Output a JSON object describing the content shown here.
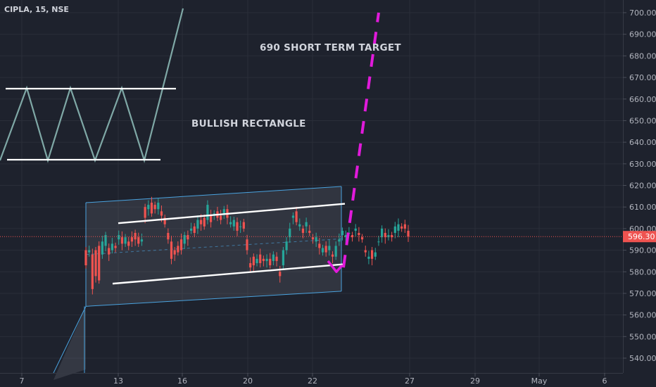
{
  "header": {
    "symbol": "CIPLA, 15, NSE"
  },
  "annotations": {
    "target": "690 SHORT TERM TARGET",
    "pattern": "BULLISH RECTANGLE"
  },
  "colors": {
    "background": "#1e222d",
    "grid": "#2a2e39",
    "axis_text": "#b2b5be",
    "up": "#26a69a",
    "down": "#ef5350",
    "channel": "#4aa3df",
    "target_path": "#e11adb",
    "schematic": "#7fa8a6",
    "last_price": "#ef5350"
  },
  "chart_data": {
    "type": "candlestick",
    "title": "CIPLA, 15, NSE",
    "last_price": "596.30",
    "y_ticks": [
      "700.00",
      "690.00",
      "680.00",
      "670.00",
      "660.00",
      "650.00",
      "640.00",
      "630.00",
      "620.00",
      "610.00",
      "600.00",
      "590.00",
      "580.00",
      "570.00",
      "560.00",
      "550.00",
      "540.00"
    ],
    "ylim": [
      535,
      705
    ],
    "x_ticks": [
      "7",
      "13",
      "16",
      "20",
      "22",
      "27",
      "29",
      "May",
      "6"
    ],
    "outer_channel": {
      "top": [
        612,
        619.5
      ],
      "bottom": [
        564,
        571
      ]
    },
    "inner_channel": {
      "top": [
        602.5,
        611.5
      ],
      "bottom": [
        574.5,
        583.5
      ]
    },
    "target": 690,
    "series_path": [
      [
        590,
        583
      ],
      [
        589,
        590
      ],
      [
        588,
        572
      ],
      [
        590,
        578
      ],
      [
        592,
        576
      ],
      [
        588,
        594
      ],
      [
        592,
        597
      ],
      [
        591,
        588
      ],
      [
        590,
        593
      ],
      [
        592,
        591
      ],
      [
        595,
        597
      ],
      [
        596,
        593
      ],
      [
        593,
        596
      ],
      [
        594,
        592
      ],
      [
        596,
        594
      ],
      [
        598,
        595
      ],
      [
        596,
        593
      ],
      [
        594,
        595
      ],
      [
        610,
        605
      ],
      [
        609,
        611
      ],
      [
        612,
        607
      ],
      [
        611,
        609
      ],
      [
        609,
        612
      ],
      [
        608,
        606
      ],
      [
        605,
        602
      ],
      [
        598,
        595
      ],
      [
        594,
        586
      ],
      [
        590,
        588
      ],
      [
        592,
        589
      ],
      [
        595,
        590
      ],
      [
        593,
        597
      ],
      [
        597,
        595
      ],
      [
        599,
        600
      ],
      [
        601,
        598
      ],
      [
        600,
        604
      ],
      [
        604,
        602
      ],
      [
        605,
        601
      ],
      [
        604,
        611
      ],
      [
        606,
        603
      ],
      [
        607,
        607
      ],
      [
        608,
        605
      ],
      [
        606,
        604
      ],
      [
        607,
        609
      ],
      [
        609,
        605
      ],
      [
        602,
        603
      ],
      [
        601,
        604
      ],
      [
        603,
        599
      ],
      [
        601,
        601
      ],
      [
        603,
        600
      ],
      [
        595,
        590
      ],
      [
        584,
        582
      ],
      [
        587,
        583
      ],
      [
        584,
        586
      ],
      [
        588,
        584
      ],
      [
        586,
        585
      ],
      [
        585,
        586
      ],
      [
        586,
        583
      ],
      [
        585,
        588
      ],
      [
        587,
        585
      ],
      [
        580,
        578
      ],
      [
        583,
        590
      ],
      [
        590,
        594
      ],
      [
        596,
        600
      ],
      [
        605,
        606
      ],
      [
        608,
        603
      ],
      [
        601,
        602
      ],
      [
        600,
        598
      ],
      [
        601,
        603
      ],
      [
        599,
        598
      ],
      [
        596,
        595
      ],
      [
        594,
        596
      ],
      [
        593,
        591
      ],
      [
        589,
        591
      ],
      [
        592,
        589
      ],
      [
        590,
        592
      ],
      [
        588,
        587
      ],
      [
        587,
        592
      ],
      [
        594,
        595
      ],
      [
        597,
        599
      ],
      [
        596,
        597
      ],
      [
        598,
        598
      ],
      [
        597,
        596
      ],
      [
        599,
        600
      ],
      [
        598,
        597
      ],
      [
        596,
        595
      ],
      [
        590,
        589
      ],
      [
        586,
        587
      ],
      [
        590,
        586
      ],
      [
        587,
        589
      ],
      [
        594,
        594
      ],
      [
        596,
        600
      ],
      [
        598,
        596
      ],
      [
        596,
        597
      ],
      [
        597,
        596
      ],
      [
        598,
        601
      ],
      [
        599,
        602
      ],
      [
        601,
        600
      ],
      [
        602,
        600
      ],
      [
        599,
        596.3
      ]
    ]
  }
}
